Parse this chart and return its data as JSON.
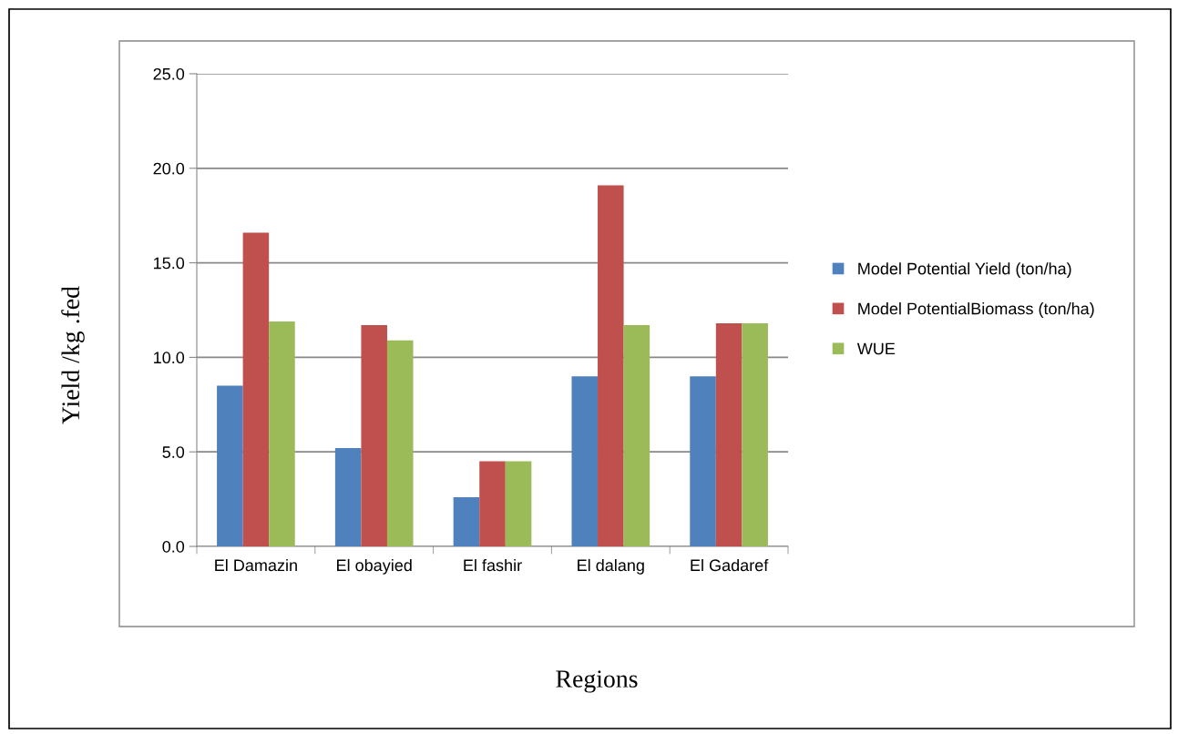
{
  "chart_data": {
    "type": "bar",
    "xlabel": "Regions",
    "ylabel": "Yield /kg .fed",
    "categories": [
      "El Damazin",
      "El obayied",
      "El fashir",
      "El dalang",
      "El Gadaref"
    ],
    "series": [
      {
        "name": "Model Potential Yield (ton/ha)",
        "color": "#4f81bd",
        "values": [
          8.5,
          5.2,
          2.6,
          9.0,
          9.0
        ]
      },
      {
        "name": "Model PotentialBiomass (ton/ha)",
        "color": "#c0504d",
        "values": [
          16.6,
          11.7,
          4.5,
          19.1,
          11.8
        ]
      },
      {
        "name": "WUE",
        "color": "#9bbb59",
        "values": [
          11.9,
          10.9,
          4.5,
          11.7,
          11.8
        ]
      }
    ],
    "ylim": [
      0,
      25
    ],
    "yticks": [
      {
        "value": 0,
        "label": "0.0"
      },
      {
        "value": 5,
        "label": "5.0"
      },
      {
        "value": 10,
        "label": "10.0"
      },
      {
        "value": 15,
        "label": "15.0"
      },
      {
        "value": 20,
        "label": "20.0"
      },
      {
        "value": 25,
        "label": "25.0"
      }
    ],
    "grid": "y",
    "legend": "right"
  }
}
